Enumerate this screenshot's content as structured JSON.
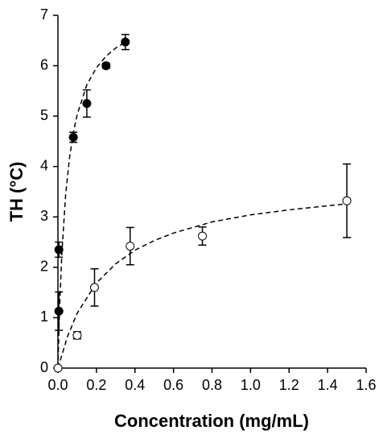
{
  "chart_data": {
    "type": "scatter",
    "x_label": "Concentration (mg/mL)",
    "y_label": "TH (°C)",
    "xlim": [
      0,
      1.6
    ],
    "ylim": [
      0,
      7
    ],
    "xticks": [
      {
        "value": 0,
        "label": "0.0"
      },
      {
        "value": 0.2,
        "label": "0.2"
      },
      {
        "value": 0.4,
        "label": "0.4"
      },
      {
        "value": 0.6,
        "label": "0.6"
      },
      {
        "value": 0.8,
        "label": "0.8"
      },
      {
        "value": 1,
        "label": "1.0"
      },
      {
        "value": 1.2,
        "label": "1.2"
      },
      {
        "value": 1.4,
        "label": "1.4"
      },
      {
        "value": 1.6,
        "label": "1.6"
      }
    ],
    "yticks": [
      0,
      1,
      2,
      3,
      4,
      5,
      6,
      7
    ],
    "series": [
      {
        "style": "fit",
        "color": "#000000",
        "x": [
          0,
          0.005,
          0.01,
          0.02,
          0.04,
          0.06,
          0.08,
          0.1,
          0.15,
          0.2,
          0.25,
          0.3,
          0.35
        ],
        "values": [
          0,
          0.73,
          1.33,
          2.25,
          3.44,
          4.17,
          4.67,
          5.03,
          5.62,
          5.96,
          6.19,
          6.35,
          6.47
        ]
      },
      {
        "style": "fit",
        "color": "#000000",
        "x": [
          0,
          0.05,
          0.1,
          0.2,
          0.3,
          0.4,
          0.5,
          0.6,
          0.8,
          1.0,
          1.2,
          1.4,
          1.5
        ],
        "values": [
          0,
          0.63,
          1.09,
          1.69,
          2.07,
          2.34,
          2.53,
          2.68,
          2.9,
          3.04,
          3.14,
          3.22,
          3.26
        ]
      },
      {
        "style": "filled",
        "color": "#000000",
        "x": [
          0.005,
          0.005,
          0.08,
          0.15,
          0.25,
          0.35
        ],
        "values": [
          1.13,
          2.35,
          4.58,
          5.25,
          6.0,
          6.47
        ],
        "errors": [
          0.38,
          0.15,
          0.1,
          0.27,
          0.05,
          0.15
        ]
      },
      {
        "style": "open",
        "color": "#000000",
        "x": [
          0,
          0.1,
          0.19,
          0.375,
          0.75,
          1.5
        ],
        "values": [
          0,
          0.65,
          1.6,
          2.42,
          2.62,
          3.32
        ],
        "errors": [
          0,
          0.07,
          0.37,
          0.37,
          0.18,
          0.73
        ]
      }
    ]
  }
}
